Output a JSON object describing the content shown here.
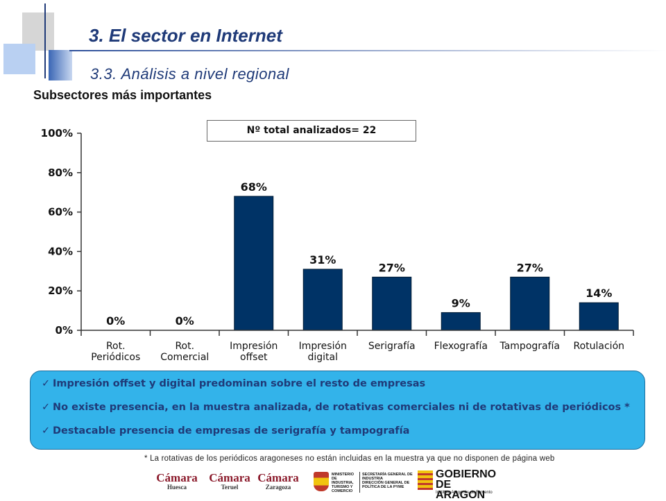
{
  "header": {
    "title": "3. El sector en Internet",
    "subtitle": "3.3. Análisis a nivel regional"
  },
  "section_title": "Subsectores más importantes",
  "chart_note": "Nº total analizados= 22",
  "chart_data": {
    "type": "bar",
    "categories": [
      [
        "Rot.",
        "Periódicos"
      ],
      [
        "Rot.",
        "Comercial"
      ],
      [
        "Impresión",
        "offset"
      ],
      [
        "Impresión",
        "digital"
      ],
      [
        "Serigrafía"
      ],
      [
        "Flexografía"
      ],
      [
        "Tampografía"
      ],
      [
        "Rotulación"
      ]
    ],
    "values": [
      0,
      0,
      68,
      31,
      27,
      9,
      27,
      14
    ],
    "data_labels": [
      "0%",
      "0%",
      "68%",
      "31%",
      "27%",
      "9%",
      "27%",
      "14%"
    ],
    "yticks": [
      "0%",
      "20%",
      "40%",
      "60%",
      "80%",
      "100%"
    ],
    "ylim": [
      0,
      100
    ],
    "bar_color": "#003366",
    "grid": false
  },
  "conclusions": [
    "Impresión offset y digital predominan sobre el resto de empresas",
    "No existe presencia, en la muestra analizada, de rotativas comerciales ni de rotativas de periódicos *",
    "Destacable presencia de empresas de serigrafía y tampografía"
  ],
  "footnote": "* La rotativas de los periódicos aragoneses no están incluidas en la muestra ya que no disponen de página web",
  "logos": {
    "camara_huesca": {
      "name": "Cámara",
      "city": "Huesca"
    },
    "camara_teruel": {
      "name": "Cámara",
      "city": "Teruel"
    },
    "camara_zaragoza": {
      "name": "Cámara",
      "city": "Zaragoza"
    },
    "ministerio": [
      "MINISTERIO",
      "DE INDUSTRIA,",
      "TURISMO Y",
      "COMERCIO"
    ],
    "secretaria": [
      "SECRETARÍA GENERAL DE",
      "INDUSTRIA",
      "DIRECCIÓN GENERAL DE",
      "POLÍTICA DE LA PYME"
    ],
    "gobierno": [
      "GOBIERNO",
      "DE ARAGON"
    ],
    "gobierno_sub": "Instituto Aragonés de Fomento"
  },
  "colors": {
    "title": "#1f3a78",
    "bar": "#003366",
    "conclusion_bg": "#33b3ea",
    "conclusion_text": "#1f3a78"
  }
}
